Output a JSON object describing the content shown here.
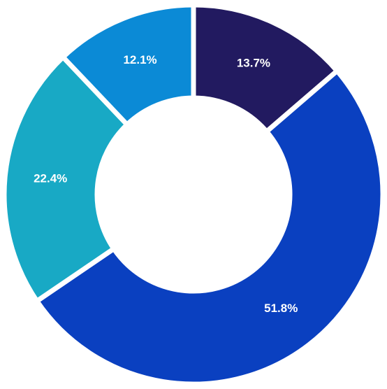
{
  "chart_data": {
    "type": "donut",
    "values": [
      13.7,
      51.8,
      22.4,
      12.1
    ],
    "value_labels": [
      "13.7%",
      "51.8%",
      "22.4%",
      "12.1%"
    ],
    "colors": [
      "#221a60",
      "#0a40c0",
      "#18a9c5",
      "#0b8ad6"
    ]
  }
}
